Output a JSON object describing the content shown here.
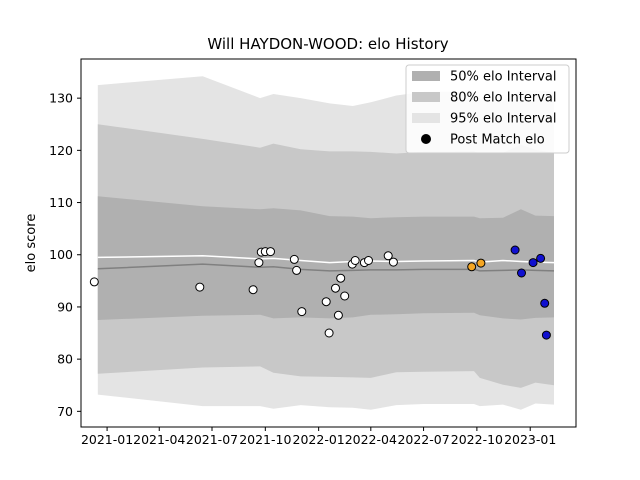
{
  "chart_data": {
    "type": "scatter",
    "title": "Will HAYDON-WOOD: elo History",
    "xlabel": "",
    "ylabel": "elo score",
    "x_ticks": [
      "2021-01",
      "2021-04",
      "2021-07",
      "2021-10",
      "2022-01",
      "2022-04",
      "2022-07",
      "2022-10",
      "2023-01"
    ],
    "y_ticks": [
      "70",
      "80",
      "90",
      "100",
      "110",
      "120",
      "130"
    ],
    "xlim": [
      "2020-11-17",
      "2023-03-21"
    ],
    "ylim": [
      67,
      137.5
    ],
    "legend_position": "upper right",
    "legend": [
      {
        "label": "50% elo Interval",
        "kind": "band",
        "color": "#b0b0b0"
      },
      {
        "label": "80% elo Interval",
        "kind": "band",
        "color": "#c8c8c8"
      },
      {
        "label": "95% elo Interval",
        "kind": "band",
        "color": "#e4e4e4"
      },
      {
        "label": "Post Match elo",
        "kind": "marker",
        "color": "#000000"
      }
    ],
    "band_dates": [
      "2020-12-16",
      "2021-06-15",
      "2021-09-22",
      "2021-10-15",
      "2021-12-01",
      "2022-01-20",
      "2022-03-01",
      "2022-04-01",
      "2022-05-15",
      "2022-07-01",
      "2022-09-26",
      "2022-10-06",
      "2022-11-15",
      "2022-12-16",
      "2023-01-10",
      "2023-02-11"
    ],
    "mean_line": [
      97.3,
      98.2,
      97.6,
      97.7,
      97.2,
      96.9,
      97.0,
      97.1,
      97.1,
      97.2,
      97.2,
      96.9,
      97.0,
      97.1,
      97.0,
      96.9
    ],
    "post_match_line": [
      99.5,
      99.8,
      99.2,
      99.3,
      98.9,
      98.5,
      98.7,
      98.8,
      98.7,
      98.8,
      98.9,
      98.6,
      98.9,
      98.7,
      98.6,
      98.5
    ],
    "band_50": {
      "lower": [
        87.5,
        88.3,
        88.5,
        87.8,
        88.0,
        87.8,
        88.0,
        88.5,
        88.6,
        88.8,
        88.9,
        88.4,
        87.8,
        87.6,
        87.9,
        88.0
      ],
      "upper": [
        111.2,
        109.3,
        108.7,
        108.9,
        108.5,
        107.4,
        107.3,
        107.0,
        107.2,
        107.3,
        107.3,
        107.0,
        107.1,
        108.7,
        107.5,
        107.4
      ]
    },
    "band_80": {
      "lower": [
        77.2,
        78.4,
        78.6,
        77.4,
        76.7,
        76.6,
        76.5,
        76.4,
        77.5,
        77.6,
        77.7,
        76.4,
        75.1,
        74.5,
        75.5,
        75.0
      ]
    },
    "band_95": {
      "lower": [
        73.2,
        71.0,
        71.0,
        70.5,
        71.2,
        70.8,
        70.7,
        70.3,
        71.2,
        71.4,
        71.4,
        71.0,
        71.3,
        70.3,
        71.5,
        71.3
      ],
      "upper": [
        132.5,
        134.2,
        130.0,
        130.8,
        130.0,
        129.0,
        128.5,
        129.2,
        130.5,
        131.2,
        131.2,
        129.8,
        129.5,
        131.5,
        131.5,
        131.2
      ]
    },
    "band_80_upper": [
      125.0,
      122.2,
      120.5,
      121.3,
      120.2,
      119.8,
      119.8,
      119.7,
      119.4,
      119.7,
      119.8,
      119.4,
      119.5,
      121.1,
      120.1,
      119.5
    ],
    "points": [
      {
        "x": "2020-12-10",
        "y": 94.8,
        "color": "#ffffff"
      },
      {
        "x": "2021-06-10",
        "y": 93.8,
        "color": "#ffffff"
      },
      {
        "x": "2021-09-10",
        "y": 93.3,
        "color": "#ffffff"
      },
      {
        "x": "2021-09-20",
        "y": 98.5,
        "color": "#ffffff"
      },
      {
        "x": "2021-09-24",
        "y": 100.5,
        "color": "#ffffff"
      },
      {
        "x": "2021-10-01",
        "y": 100.6,
        "color": "#ffffff"
      },
      {
        "x": "2021-10-10",
        "y": 100.6,
        "color": "#ffffff"
      },
      {
        "x": "2021-11-20",
        "y": 99.1,
        "color": "#ffffff"
      },
      {
        "x": "2021-11-24",
        "y": 97.0,
        "color": "#ffffff"
      },
      {
        "x": "2021-12-03",
        "y": 89.1,
        "color": "#ffffff"
      },
      {
        "x": "2022-01-14",
        "y": 91.0,
        "color": "#ffffff"
      },
      {
        "x": "2022-01-19",
        "y": 85.0,
        "color": "#ffffff"
      },
      {
        "x": "2022-01-30",
        "y": 93.6,
        "color": "#ffffff"
      },
      {
        "x": "2022-02-04",
        "y": 88.4,
        "color": "#ffffff"
      },
      {
        "x": "2022-02-08",
        "y": 95.5,
        "color": "#ffffff"
      },
      {
        "x": "2022-02-15",
        "y": 92.1,
        "color": "#ffffff"
      },
      {
        "x": "2022-02-28",
        "y": 98.2,
        "color": "#ffffff"
      },
      {
        "x": "2022-03-05",
        "y": 98.9,
        "color": "#ffffff"
      },
      {
        "x": "2022-03-21",
        "y": 98.5,
        "color": "#ffffff"
      },
      {
        "x": "2022-03-28",
        "y": 98.9,
        "color": "#ffffff"
      },
      {
        "x": "2022-05-01",
        "y": 99.8,
        "color": "#ffffff"
      },
      {
        "x": "2022-05-10",
        "y": 98.6,
        "color": "#ffffff"
      },
      {
        "x": "2022-09-22",
        "y": 97.7,
        "color": "#f5a623"
      },
      {
        "x": "2022-10-08",
        "y": 98.4,
        "color": "#f5a623"
      },
      {
        "x": "2022-12-06",
        "y": 100.9,
        "color": "#1010d0"
      },
      {
        "x": "2022-12-17",
        "y": 96.5,
        "color": "#1010d0"
      },
      {
        "x": "2023-01-06",
        "y": 98.5,
        "color": "#1010d0"
      },
      {
        "x": "2023-01-19",
        "y": 99.3,
        "color": "#1010d0"
      },
      {
        "x": "2023-01-26",
        "y": 90.7,
        "color": "#1010d0"
      },
      {
        "x": "2023-01-29",
        "y": 84.6,
        "color": "#1010d0"
      }
    ]
  }
}
